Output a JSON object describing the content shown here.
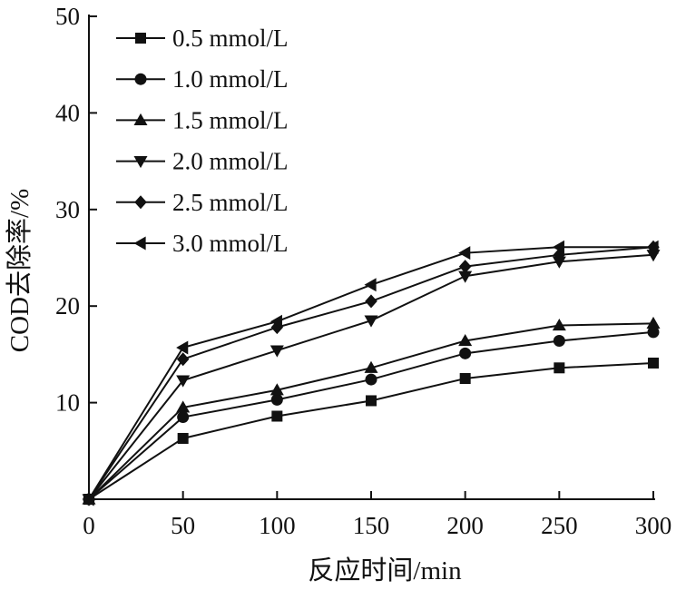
{
  "chart_data": {
    "type": "line",
    "xlabel": "反应时间/min",
    "ylabel": "COD去除率/%",
    "x": [
      0,
      50,
      100,
      150,
      200,
      250,
      300
    ],
    "xlim": [
      0,
      300
    ],
    "ylim": [
      0,
      50
    ],
    "xticks": [
      0,
      50,
      100,
      150,
      200,
      250,
      300
    ],
    "yticks": [
      10,
      20,
      30,
      40,
      50
    ],
    "grid": false,
    "legend_position": "top-left",
    "series": [
      {
        "name": "0.5 mmol/L",
        "marker": "square",
        "values": [
          0,
          6.3,
          8.6,
          10.2,
          12.5,
          13.6,
          14.1
        ]
      },
      {
        "name": "1.0 mmol/L",
        "marker": "circle",
        "values": [
          0,
          8.5,
          10.3,
          12.4,
          15.1,
          16.4,
          17.3
        ]
      },
      {
        "name": "1.5 mmol/L",
        "marker": "triangle-up",
        "values": [
          0,
          9.5,
          11.3,
          13.6,
          16.4,
          18.0,
          18.2
        ]
      },
      {
        "name": "2.0 mmol/L",
        "marker": "triangle-down",
        "values": [
          0,
          12.3,
          15.4,
          18.5,
          23.1,
          24.6,
          25.3
        ]
      },
      {
        "name": "2.5 mmol/L",
        "marker": "diamond",
        "values": [
          0,
          14.5,
          17.8,
          20.5,
          24.1,
          25.3,
          26.1
        ]
      },
      {
        "name": "3.0 mmol/L",
        "marker": "triangle-left",
        "values": [
          0,
          15.7,
          18.4,
          22.2,
          25.5,
          26.1,
          26.1
        ]
      }
    ],
    "line_color": "#111111"
  }
}
